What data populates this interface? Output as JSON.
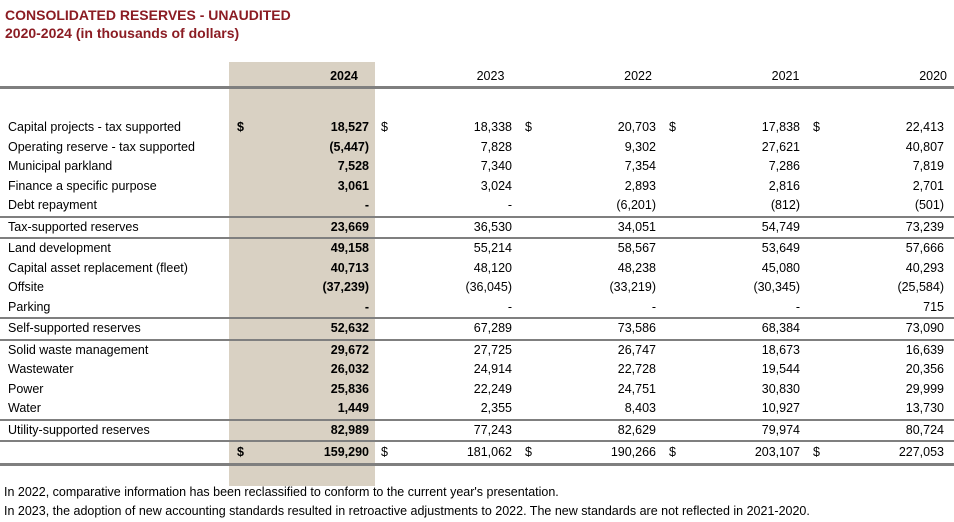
{
  "title": {
    "line1": "CONSOLIDATED RESERVES - UNAUDITED",
    "line2": "2020-2024 (in thousands of dollars)"
  },
  "colors": {
    "title_red": "#8b1c23",
    "highlight_beige": "#d9d1c3",
    "rule_gray": "#7f7f7f"
  },
  "columns": [
    "2024",
    "2023",
    "2022",
    "2021",
    "2020"
  ],
  "current_column": "2024",
  "sections": [
    {
      "rows": [
        {
          "label": "Capital projects - tax supported",
          "dollar": true,
          "values": [
            "18,527",
            "18,338",
            "20,703",
            "17,838",
            "22,413"
          ]
        },
        {
          "label": "Operating reserve - tax supported",
          "values": [
            "(5,447)",
            "7,828",
            "9,302",
            "27,621",
            "40,807"
          ]
        },
        {
          "label": "Municipal parkland",
          "values": [
            "7,528",
            "7,340",
            "7,354",
            "7,286",
            "7,819"
          ]
        },
        {
          "label": "Finance a specific purpose",
          "values": [
            "3,061",
            "3,024",
            "2,893",
            "2,816",
            "2,701"
          ]
        },
        {
          "label": "Debt repayment",
          "values": [
            "-",
            "-",
            "(6,201)",
            "(812)",
            "(501)"
          ]
        }
      ],
      "subtotal": {
        "label": "Tax-supported reserves",
        "values": [
          "23,669",
          "36,530",
          "34,051",
          "54,749",
          "73,239"
        ]
      }
    },
    {
      "rows": [
        {
          "label": "Land development",
          "values": [
            "49,158",
            "55,214",
            "58,567",
            "53,649",
            "57,666"
          ]
        },
        {
          "label": "Capital asset replacement (fleet)",
          "values": [
            "40,713",
            "48,120",
            "48,238",
            "45,080",
            "40,293"
          ]
        },
        {
          "label": "Offsite",
          "values": [
            "(37,239)",
            "(36,045)",
            "(33,219)",
            "(30,345)",
            "(25,584)"
          ]
        },
        {
          "label": "Parking",
          "values": [
            "-",
            "-",
            "-",
            "-",
            "715"
          ]
        }
      ],
      "subtotal": {
        "label": "Self-supported reserves",
        "values": [
          "52,632",
          "67,289",
          "73,586",
          "68,384",
          "73,090"
        ]
      }
    },
    {
      "rows": [
        {
          "label": "Solid waste management",
          "values": [
            "29,672",
            "27,725",
            "26,747",
            "18,673",
            "16,639"
          ]
        },
        {
          "label": "Wastewater",
          "values": [
            "26,032",
            "24,914",
            "22,728",
            "19,544",
            "20,356"
          ]
        },
        {
          "label": "Power",
          "values": [
            "25,836",
            "22,249",
            "24,751",
            "30,830",
            "29,999"
          ]
        },
        {
          "label": "Water",
          "values": [
            "1,449",
            "2,355",
            "8,403",
            "10,927",
            "13,730"
          ]
        }
      ],
      "subtotal": {
        "label": "Utility-supported reserves",
        "values": [
          "82,989",
          "77,243",
          "82,629",
          "79,974",
          "80,724"
        ]
      }
    }
  ],
  "total": {
    "label": "",
    "dollar": true,
    "values": [
      "159,290",
      "181,062",
      "190,266",
      "203,107",
      "227,053"
    ]
  },
  "dollar_sign": "$",
  "footnotes": [
    "In 2022, comparative information has been reclassified to conform to the current year's presentation.",
    "In 2023, the adoption of new accounting standards resulted in retroactive adjustments to 2022. The new standards are not reflected in 2021-2020."
  ]
}
